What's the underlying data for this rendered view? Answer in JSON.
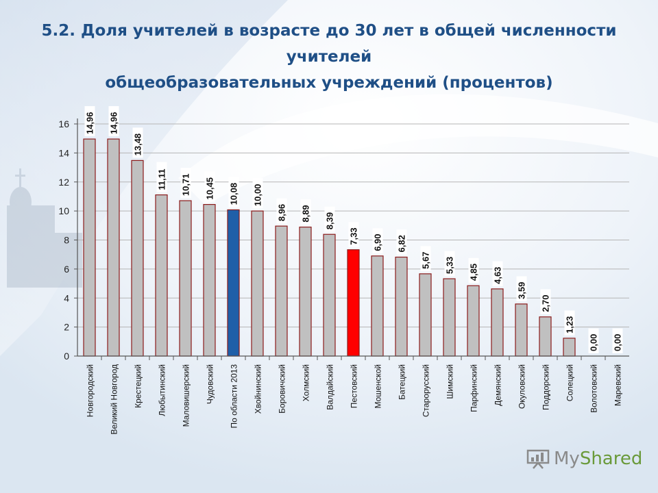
{
  "title": {
    "line1": "5.2. Доля учителей в возрасте до 30 лет в общей численности",
    "line2": "учителей",
    "line3": "общеобразовательных учреждений (процентов)"
  },
  "watermark": {
    "my": "My",
    "shared": "Shared"
  },
  "colors": {
    "bar_default": "#c0c0c0",
    "bar_border": "#8b1a1a",
    "bar_highlight_region": "#1f5fa8",
    "bar_highlight_red": "#ff0000",
    "title": "#1f4f86"
  },
  "chart_data": {
    "type": "bar",
    "categories": [
      "Новгородский",
      "Великий Новгород",
      "Крестецкий",
      "Любытинский",
      "Маловишерский",
      "Чудовский",
      "По области 2013",
      "Хвойнинский",
      "Боровичский",
      "Холмский",
      "Валдайский",
      "Пестовский",
      "Мошенской",
      "Батецкий",
      "Старорусский",
      "Шимский",
      "Парфинский",
      "Демянский",
      "Окуловский",
      "Поддорский",
      "Солецкий",
      "Волотовский",
      "Маревский"
    ],
    "values": [
      14.96,
      14.96,
      13.48,
      11.11,
      10.71,
      10.45,
      10.08,
      10.0,
      8.96,
      8.89,
      8.39,
      7.33,
      6.9,
      6.82,
      5.67,
      5.33,
      4.85,
      4.63,
      3.59,
      2.7,
      1.23,
      0.0,
      0.0
    ],
    "value_labels": [
      "14,96",
      "14,96",
      "13,48",
      "11,11",
      "10,71",
      "10,45",
      "10,08",
      "10,00",
      "8,96",
      "8,89",
      "8,39",
      "7,33",
      "6,90",
      "6,82",
      "5,67",
      "5,33",
      "4,85",
      "4,63",
      "3,59",
      "2,70",
      "1,23",
      "0,00",
      "0,00"
    ],
    "highlight": {
      "По области 2013": "bar_highlight_region",
      "Пестовский": "bar_highlight_red"
    },
    "yticks": [
      "0",
      "2",
      "4",
      "6",
      "8",
      "10",
      "12",
      "14",
      "16"
    ],
    "ylim": [
      0,
      16
    ],
    "grid": true,
    "xlabel": "",
    "ylabel": ""
  }
}
